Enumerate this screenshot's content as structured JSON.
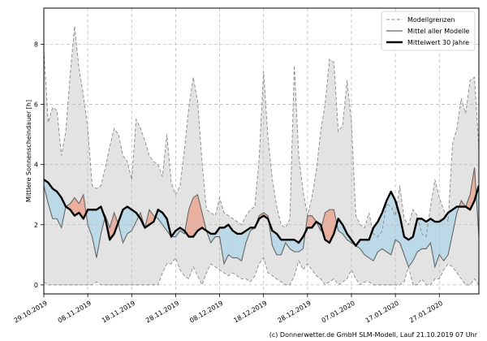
{
  "chart_data": {
    "type": "area",
    "ylabel": "Mittlere Sonnenscheindauer [h]",
    "xlabel": "",
    "ylim": [
      -0.3,
      9.2
    ],
    "yticks": [
      0,
      2,
      4,
      6,
      8
    ],
    "xlim": [
      "2019-10-29",
      "2020-02-05"
    ],
    "xticks": [
      {
        "date": "2019-10-29",
        "label": "29.10.2019"
      },
      {
        "date": "2019-11-08",
        "label": "08.11.2019"
      },
      {
        "date": "2019-11-18",
        "label": "18.11.2019"
      },
      {
        "date": "2019-11-28",
        "label": "28.11.2019"
      },
      {
        "date": "2019-12-08",
        "label": "08.12.2019"
      },
      {
        "date": "2019-12-18",
        "label": "18.12.2019"
      },
      {
        "date": "2019-12-28",
        "label": "28.12.2019"
      },
      {
        "date": "2020-01-07",
        "label": "07.01.2020"
      },
      {
        "date": "2020-01-17",
        "label": "17.01.2020"
      },
      {
        "date": "2020-01-27",
        "label": "27.01.2020"
      }
    ],
    "grid": true,
    "legend_position": "top-right",
    "legend": [
      {
        "label": "Modellgrenzen",
        "style": "dashed",
        "color": "#888888"
      },
      {
        "label": "Mittel aller Modelle",
        "style": "solid",
        "color": "#666666"
      },
      {
        "label": "Mittelwert 30 Jahre",
        "style": "solid-bold",
        "color": "#000000"
      }
    ],
    "colors": {
      "range_fill": "#e3e3e3",
      "above_fill": "#e9b0a0",
      "below_fill": "#bcd9e8",
      "model_line": "#666666",
      "climate_line": "#000000",
      "bound_line": "#888888"
    },
    "x": [
      "2019-10-29",
      "2019-10-30",
      "2019-10-31",
      "2019-11-01",
      "2019-11-02",
      "2019-11-03",
      "2019-11-04",
      "2019-11-05",
      "2019-11-06",
      "2019-11-07",
      "2019-11-08",
      "2019-11-09",
      "2019-11-10",
      "2019-11-11",
      "2019-11-12",
      "2019-11-13",
      "2019-11-14",
      "2019-11-15",
      "2019-11-16",
      "2019-11-17",
      "2019-11-18",
      "2019-11-19",
      "2019-11-20",
      "2019-11-21",
      "2019-11-22",
      "2019-11-23",
      "2019-11-24",
      "2019-11-25",
      "2019-11-26",
      "2019-11-27",
      "2019-11-28",
      "2019-11-29",
      "2019-11-30",
      "2019-12-01",
      "2019-12-02",
      "2019-12-03",
      "2019-12-04",
      "2019-12-05",
      "2019-12-06",
      "2019-12-07",
      "2019-12-08",
      "2019-12-09",
      "2019-12-10",
      "2019-12-11",
      "2019-12-12",
      "2019-12-13",
      "2019-12-14",
      "2019-12-15",
      "2019-12-16",
      "2019-12-17",
      "2019-12-18",
      "2019-12-19",
      "2019-12-20",
      "2019-12-21",
      "2019-12-22",
      "2019-12-23",
      "2019-12-24",
      "2019-12-25",
      "2019-12-26",
      "2019-12-27",
      "2019-12-28",
      "2019-12-29",
      "2019-12-30",
      "2019-12-31",
      "2020-01-01",
      "2020-01-02",
      "2020-01-03",
      "2020-01-04",
      "2020-01-05",
      "2020-01-06",
      "2020-01-07",
      "2020-01-08",
      "2020-01-09",
      "2020-01-10",
      "2020-01-11",
      "2020-01-12",
      "2020-01-13",
      "2020-01-14",
      "2020-01-15",
      "2020-01-16",
      "2020-01-17",
      "2020-01-18",
      "2020-01-19",
      "2020-01-20",
      "2020-01-21",
      "2020-01-22",
      "2020-01-23",
      "2020-01-24",
      "2020-01-25",
      "2020-01-26",
      "2020-01-27",
      "2020-01-28",
      "2020-01-29",
      "2020-01-30",
      "2020-01-31",
      "2020-02-01",
      "2020-02-02",
      "2020-02-03",
      "2020-02-04",
      "2020-02-05"
    ],
    "series": [
      {
        "name": "Modellgrenzen",
        "role": "upper",
        "values": [
          7.8,
          5.4,
          5.9,
          5.8,
          4.3,
          5.1,
          7.0,
          8.6,
          7.2,
          6.3,
          5.2,
          3.3,
          3.2,
          3.3,
          3.9,
          4.6,
          5.2,
          5.0,
          4.3,
          4.1,
          3.5,
          5.5,
          5.2,
          4.8,
          4.3,
          4.1,
          4.0,
          3.6,
          5.0,
          3.4,
          3.0,
          3.3,
          4.5,
          5.9,
          6.9,
          6.1,
          4.1,
          2.5,
          2.4,
          2.3,
          2.9,
          2.4,
          2.3,
          2.2,
          2.1,
          2.0,
          2.3,
          2.5,
          2.6,
          4.2,
          7.1,
          4.9,
          3.5,
          2.6,
          2.0,
          1.9,
          2.2,
          7.3,
          4.3,
          3.1,
          2.3,
          2.9,
          3.8,
          5.1,
          6.0,
          7.5,
          7.4,
          5.1,
          5.3,
          6.8,
          5.4,
          2.3,
          2.0,
          1.9,
          2.4,
          1.7,
          1.6,
          1.8,
          2.7,
          2.6,
          2.3,
          3.3,
          2.2,
          2.0,
          2.5,
          2.3,
          1.7,
          1.6,
          2.6,
          3.5,
          2.9,
          2.5,
          2.1,
          4.7,
          5.2,
          6.2,
          5.7,
          6.8,
          6.9,
          4.5
        ]
      },
      {
        "name": "Modellgrenzen",
        "role": "lower",
        "values": [
          0.1,
          0.0,
          0.0,
          0.0,
          0.0,
          0.0,
          0.0,
          0.0,
          0.0,
          0.0,
          0.0,
          0.0,
          0.1,
          0.0,
          0.0,
          0.0,
          0.0,
          0.0,
          0.0,
          0.0,
          0.0,
          0.0,
          0.0,
          0.0,
          0.0,
          0.0,
          0.0,
          0.4,
          0.7,
          0.7,
          0.9,
          0.5,
          0.3,
          0.2,
          0.6,
          0.3,
          0.0,
          0.4,
          0.7,
          0.6,
          0.5,
          0.4,
          0.3,
          0.4,
          0.3,
          0.2,
          0.2,
          0.1,
          0.3,
          0.7,
          0.9,
          0.4,
          0.3,
          0.2,
          0.1,
          0.0,
          0.0,
          0.3,
          0.8,
          0.5,
          0.7,
          0.5,
          0.3,
          0.2,
          0.0,
          0.1,
          0.2,
          0.0,
          0.1,
          0.2,
          0.5,
          0.2,
          0.0,
          0.1,
          0.1,
          0.0,
          0.0,
          0.0,
          0.0,
          0.0,
          0.0,
          0.0,
          0.1,
          0.6,
          0.0,
          0.0,
          0.2,
          0.0,
          0.0,
          0.2,
          0.2,
          0.5,
          0.7,
          0.6,
          0.4,
          0.2,
          0.0,
          0.0,
          0.2,
          0.0
        ]
      },
      {
        "name": "Mittel aller Modelle",
        "role": "model_mean",
        "values": [
          3.3,
          2.7,
          2.2,
          2.2,
          1.9,
          2.6,
          2.7,
          2.9,
          2.7,
          3.0,
          2.0,
          1.6,
          0.9,
          1.7,
          2.3,
          1.9,
          2.4,
          2.0,
          1.4,
          1.7,
          1.8,
          2.1,
          2.4,
          1.9,
          2.5,
          2.3,
          2.2,
          2.0,
          1.8,
          1.6,
          1.6,
          1.8,
          1.7,
          2.5,
          2.9,
          3.0,
          2.4,
          1.8,
          1.4,
          1.6,
          1.6,
          0.7,
          1.0,
          0.9,
          0.9,
          0.8,
          1.4,
          1.8,
          1.9,
          2.3,
          2.4,
          2.3,
          1.3,
          1.0,
          1.0,
          1.4,
          1.2,
          1.1,
          1.1,
          1.2,
          2.3,
          2.3,
          2.1,
          1.8,
          2.4,
          2.5,
          2.5,
          1.8,
          1.7,
          1.5,
          1.4,
          1.3,
          1.2,
          1.0,
          0.9,
          0.8,
          1.1,
          1.2,
          1.1,
          1.0,
          1.5,
          1.4,
          1.0,
          0.6,
          0.8,
          1.1,
          1.2,
          1.2,
          1.4,
          0.6,
          1.0,
          0.8,
          1.0,
          1.7,
          2.4,
          2.8,
          2.6,
          3.0,
          3.9,
          1.6
        ]
      },
      {
        "name": "Mittelwert 30 Jahre",
        "role": "climate_mean",
        "values": [
          3.5,
          3.4,
          3.2,
          3.1,
          2.9,
          2.6,
          2.5,
          2.3,
          2.4,
          2.2,
          2.5,
          2.5,
          2.5,
          2.6,
          2.2,
          1.5,
          1.7,
          2.1,
          2.5,
          2.6,
          2.5,
          2.4,
          2.2,
          1.9,
          2.0,
          2.1,
          2.5,
          2.4,
          2.2,
          1.6,
          1.8,
          1.9,
          1.8,
          1.6,
          1.6,
          1.8,
          1.9,
          1.8,
          1.7,
          1.7,
          1.9,
          1.9,
          2.0,
          1.8,
          1.7,
          1.7,
          1.8,
          1.9,
          1.9,
          2.2,
          2.3,
          2.2,
          1.8,
          1.7,
          1.5,
          1.5,
          1.5,
          1.5,
          1.4,
          1.6,
          1.9,
          1.9,
          2.1,
          2.0,
          1.5,
          1.4,
          1.7,
          2.2,
          2.0,
          1.7,
          1.5,
          1.3,
          1.5,
          1.5,
          1.5,
          1.9,
          2.1,
          2.4,
          2.8,
          3.1,
          2.8,
          2.3,
          1.6,
          1.5,
          1.6,
          2.2,
          2.2,
          2.1,
          2.2,
          2.1,
          2.1,
          2.2,
          2.4,
          2.5,
          2.6,
          2.6,
          2.6,
          2.5,
          2.8,
          3.3
        ]
      }
    ]
  },
  "footer": {
    "copyright": "(c) Donnerwetter.de GmbH SLM-Modell, Lauf 21.10.2019 07 Uhr"
  }
}
